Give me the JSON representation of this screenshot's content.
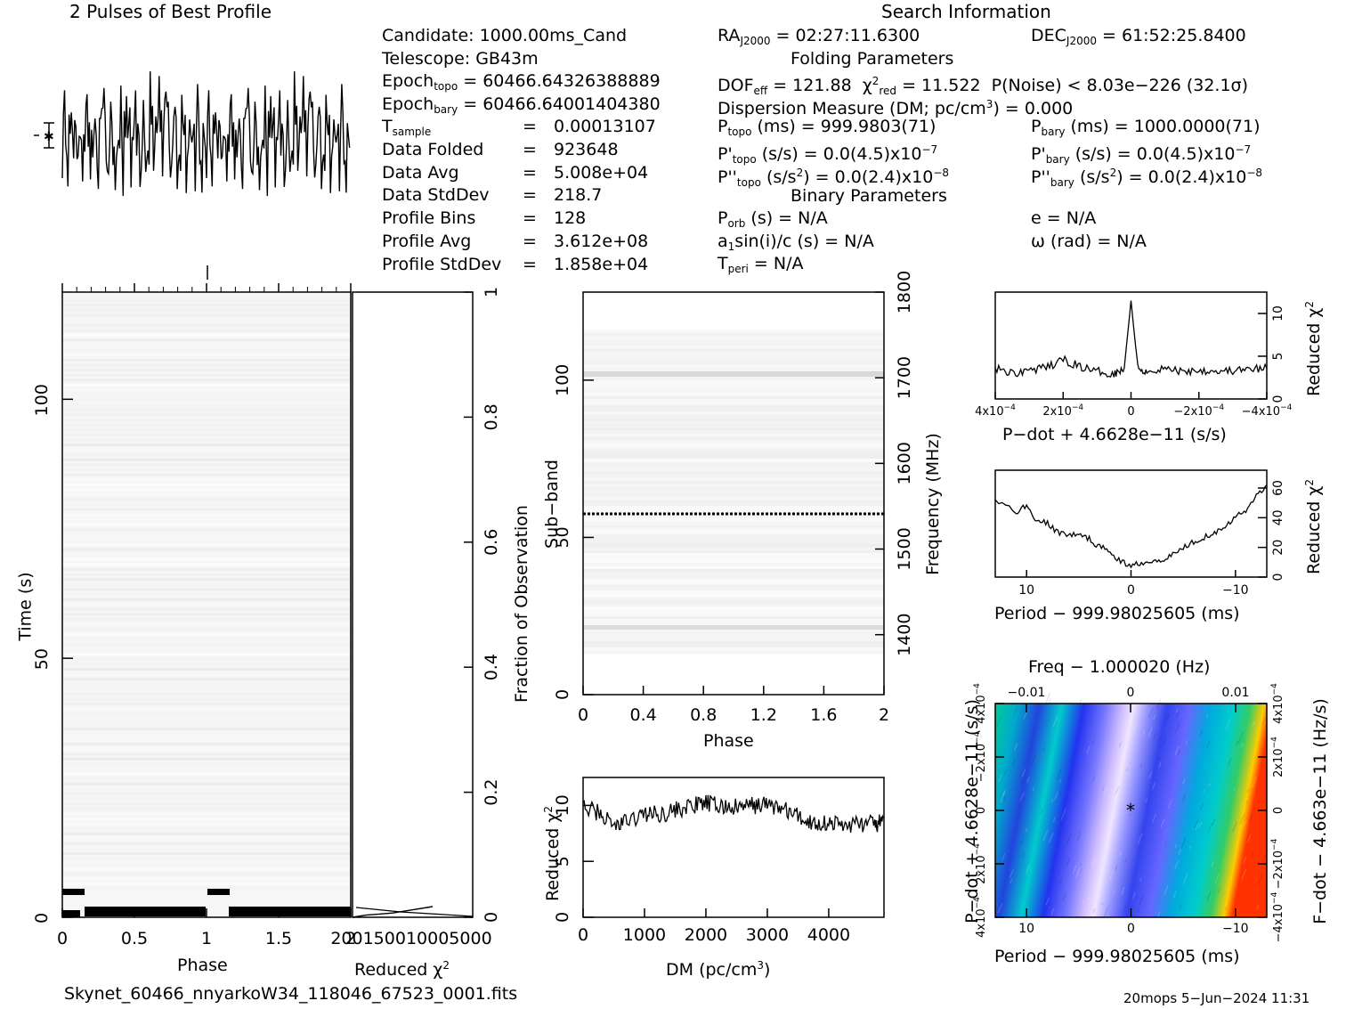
{
  "header": {
    "profile_title": "2 Pulses of Best Profile",
    "search_title": "Search Information",
    "folding_title": "Folding Parameters",
    "binary_title": "Binary Parameters"
  },
  "info_left": {
    "candidate": "Candidate:  1000.00ms_Cand",
    "telescope": "Telescope:  GB43m",
    "epoch_topo_label": "Epoch",
    "epoch_topo_sub": "topo",
    "epoch_topo_value": " = 60466.64326388889",
    "epoch_bary_label": "Epoch",
    "epoch_bary_sub": "bary",
    "epoch_bary_value": " = 60466.64001404380",
    "tsample_label": "T",
    "tsample_sub": "sample",
    "tsample_eq": "=",
    "tsample_value": "0.00013107",
    "rows": [
      {
        "label": "Data Folded",
        "eq": "=",
        "value": "923648"
      },
      {
        "label": "Data Avg",
        "eq": "=",
        "value": "5.008e+04"
      },
      {
        "label": "Data StdDev",
        "eq": "=",
        "value": "218.7"
      },
      {
        "label": "Profile Bins",
        "eq": "=",
        "value": "128"
      },
      {
        "label": "Profile Avg",
        "eq": "=",
        "value": "3.612e+08"
      },
      {
        "label": "Profile StdDev",
        "eq": "=",
        "value": "1.858e+04"
      }
    ]
  },
  "info_mid": {
    "ra_label": "RA",
    "ra_sub": "J2000",
    "ra_value": " = 02:27:11.6300",
    "dof_label": "DOF",
    "dof_sub": "eff",
    "dof_value": " = 121.88",
    "chi_label": "χ",
    "chi_sup": "2",
    "chi_sub": "red",
    "chi_value": " = 11.522",
    "pnoise": "P(Noise) < 8.03e−226   (32.1σ)",
    "dm_line": "Dispersion Measure (DM; pc/cm",
    "dm_sup": "3",
    "dm_value": ") = 0.000",
    "ptopo_label": "P",
    "ptopo_sub": "topo",
    "ptopo_value": " (ms) =  999.9803(71)",
    "pdtopo_label": "P'",
    "pdtopo_sub": "topo",
    "pdtopo_value": " (s/s) = 0.0(4.5)x10",
    "pdtopo_exp": "−7",
    "pddtopo_label": "P''",
    "pddtopo_sub": "topo",
    "pddtopo_value": " (s/s",
    "pddtopo_sup": "2",
    "pddtopo_value2": ") = 0.0(2.4)x10",
    "pddtopo_exp": "−8",
    "porb_label": "P",
    "porb_sub": "orb",
    "porb_value": " (s) = N/A",
    "a1_label": "a",
    "a1_sub": "1",
    "a1_value": "sin(i)/c (s) = N/A",
    "tperi_label": "T",
    "tperi_sub": "peri",
    "tperi_value": " = N/A"
  },
  "info_right": {
    "dec_label": "DEC",
    "dec_sub": "J2000",
    "dec_value": " = 61:52:25.8400",
    "pbary_label": "P",
    "pbary_sub": "bary",
    "pbary_value": " (ms) =  1000.0000(71)",
    "pdbary_label": "P'",
    "pdbary_sub": "bary",
    "pdbary_value": " (s/s) = 0.0(4.5)x10",
    "pdbary_exp": "−7",
    "pddbary_label": "P''",
    "pddbary_sub": "bary",
    "pddbary_value": " (s/s",
    "pddbary_sup": "2",
    "pddbary_value2": ") = 0.0(2.4)x10",
    "pddbary_exp": "−8",
    "ecc": "e = N/A",
    "omega": "ω (rad) = N/A"
  },
  "footer": {
    "filename": "Skynet_60466_nnyarkoW34_118046_67523_0001.fits",
    "stamp": "20mops  5−Jun−2024 11:31"
  },
  "colors": {
    "axis": "#000000",
    "grid_shade": "#e0e0e0",
    "pp_colors": [
      "#3333ff",
      "#6666ff",
      "#9999ff",
      "#ccccff",
      "#00cccc",
      "#33cc66",
      "#ffcc00",
      "#ff3300"
    ]
  },
  "chart_data": [
    {
      "id": "profile",
      "type": "line",
      "title": "2 Pulses of Best Profile",
      "xlim": [
        0,
        2
      ],
      "profile_bins": 128,
      "description_values": "noise-like folded profile, two cycles, no significant pulse"
    },
    {
      "id": "time_vs_phase",
      "type": "heatmap",
      "xlabel": "Phase",
      "ylabel": "Time (s)",
      "x_ticks": [
        "0",
        "0.5",
        "1",
        "1.5",
        "2"
      ],
      "y_ticks": [
        "0",
        "50",
        "100"
      ],
      "xlim": [
        0,
        2
      ],
      "ylim": [
        0,
        120
      ]
    },
    {
      "id": "reduced_chi2_vs_time",
      "type": "line",
      "xlabel": "Reduced χ",
      "xlabel_sup": "2",
      "x_ticks": [
        "200",
        "1500",
        "1000",
        "500",
        "0"
      ],
      "right_label": "Fraction of Observation",
      "right_ticks": [
        "0",
        "0.2",
        "0.4",
        "0.6",
        "0.8",
        "1"
      ],
      "x": [
        0,
        0.05,
        0.1,
        0.15,
        0.2,
        0.3
      ],
      "y": [
        0.0,
        0.004,
        0.006,
        0.008,
        0.012,
        0.02
      ]
    },
    {
      "id": "subband_vs_phase",
      "type": "heatmap",
      "xlabel": "Phase",
      "ylabel": "Sub−band",
      "right_label": "Frequency (MHz)",
      "x_ticks": [
        "0",
        "0.4",
        "0.8",
        "1.2",
        "1.6",
        "2"
      ],
      "y_ticks": [
        "0",
        "50",
        "100"
      ],
      "right_ticks": [
        "1400",
        "1500",
        "1600",
        "1700",
        "1800"
      ],
      "xlim": [
        0,
        2
      ],
      "ylim": [
        0,
        128
      ],
      "freq_lim": [
        1330,
        1800
      ]
    },
    {
      "id": "chi2_vs_dm",
      "type": "line",
      "xlabel": "DM (pc/cm",
      "xlabel_sup": "3",
      "xlabel_end": ")",
      "ylabel": "Reduced χ",
      "ylabel_sup": "2",
      "x_ticks": [
        "0",
        "1000",
        "2000",
        "3000",
        "4000"
      ],
      "y_ticks": [
        "0",
        "5",
        "10"
      ],
      "xlim": [
        0,
        4900
      ],
      "ylim": [
        0,
        12.5
      ],
      "x": [
        0,
        250,
        500,
        750,
        1000,
        1250,
        1500,
        1750,
        2000,
        2250,
        2500,
        2750,
        3000,
        3250,
        3500,
        3750,
        4000,
        4250,
        4500,
        4750,
        4900
      ],
      "y": [
        9.8,
        9.4,
        8.2,
        8.6,
        9.3,
        9.2,
        9.6,
        9.9,
        10.2,
        9.9,
        9.8,
        10.0,
        10.1,
        9.7,
        9.0,
        8.4,
        8.5,
        8.2,
        8.4,
        8.3,
        8.5
      ]
    },
    {
      "id": "chi2_vs_pdot",
      "type": "line",
      "xlabel": "P−dot + 4.6628e−11 (s/s)",
      "ylabel": "Reduced χ",
      "ylabel_sup": "2",
      "x_ticks": [
        "4x10",
        "2x10",
        "0",
        "−2x10",
        "−4x10"
      ],
      "x_tick_exp": "−4",
      "y_ticks": [
        "0",
        "5",
        "10"
      ],
      "xlim": [
        0.0004,
        -0.0004
      ],
      "ylim": [
        0,
        12.5
      ],
      "x": [
        0.0004,
        0.00035,
        0.0003,
        0.00025,
        0.0002,
        0.00015,
        0.0001,
        5e-05,
        2e-05,
        0,
        -2e-05,
        -5e-05,
        -0.0001,
        -0.00015,
        -0.0002,
        -0.00025,
        -0.0003,
        -0.00035,
        -0.0004
      ],
      "y": [
        3.6,
        3.0,
        3.4,
        3.6,
        4.6,
        3.8,
        3.2,
        3.0,
        3.6,
        11.5,
        3.6,
        3.2,
        3.6,
        3.2,
        3.4,
        3.3,
        3.3,
        3.4,
        3.6
      ]
    },
    {
      "id": "chi2_vs_period",
      "type": "line",
      "xlabel": "Period − 999.98025605 (ms)",
      "ylabel": "Reduced χ",
      "ylabel_sup": "2",
      "x_ticks": [
        "10",
        "0",
        "−10"
      ],
      "y_ticks": [
        "0",
        "20",
        "40",
        "60"
      ],
      "xlim": [
        13,
        -13
      ],
      "ylim": [
        0,
        72
      ],
      "x": [
        13,
        11,
        10,
        9,
        8,
        7,
        6,
        5,
        4,
        3,
        2,
        1,
        0,
        -1,
        -2,
        -3,
        -4,
        -5,
        -6,
        -7,
        -8,
        -9,
        -10,
        -11,
        -12,
        -13
      ],
      "y": [
        52,
        44,
        48,
        38,
        36,
        30,
        29,
        28,
        26,
        20,
        18,
        10,
        8,
        10,
        11,
        12,
        15,
        20,
        24,
        27,
        30,
        35,
        40,
        45,
        55,
        62
      ]
    },
    {
      "id": "pdot_vs_period",
      "type": "heatmap",
      "title": "Freq − 1.000020 (Hz)",
      "xlabel": "Period − 999.98025605 (ms)",
      "ylabel": "P−dot + 4.6628e−11 (s/s)",
      "right_label": "F−dot − 4.663e−11 (Hz/s)",
      "top_ticks": [
        "−0.01",
        "0",
        "0.01"
      ],
      "x_ticks": [
        "10",
        "0",
        "−10"
      ],
      "y_ticks": [
        "4x10",
        "2x10",
        "0",
        "−2x10",
        "4x10"
      ],
      "y_tick_exp": "−4",
      "right_ticks": [
        "−4x10",
        "−2x10",
        "0",
        "2x10",
        "4x10"
      ],
      "xlim": [
        13,
        -13
      ],
      "ylim": [
        -0.0004,
        0.0004
      ],
      "best_marker": "*"
    }
  ]
}
